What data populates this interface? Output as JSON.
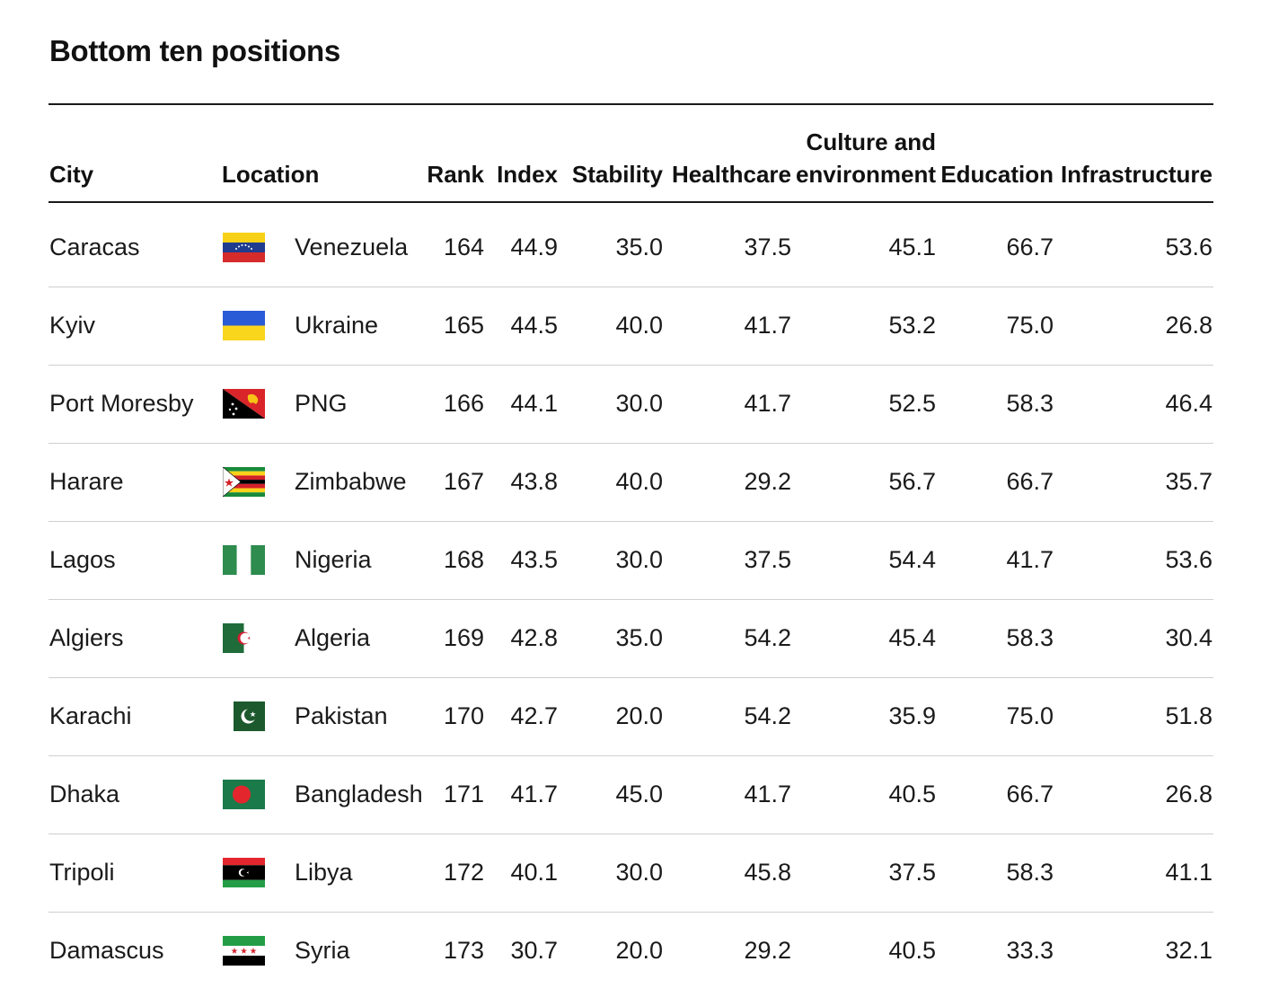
{
  "title": "Bottom ten positions",
  "headers": {
    "city": "City",
    "location": "Location",
    "rank": "Rank",
    "index": "Index",
    "stability": "Stability",
    "healthcare": "Healthcare",
    "culture_line1": "Culture and",
    "culture_line2": "environment",
    "education": "Education",
    "infrastructure": "Infrastructure"
  },
  "chart_data": {
    "type": "table",
    "columns": [
      "City",
      "Location",
      "Rank",
      "Index",
      "Stability",
      "Healthcare",
      "Culture and environment",
      "Education",
      "Infrastructure"
    ],
    "rows": [
      {
        "city": "Caracas",
        "location": "Venezuela",
        "flag": "venezuela-flag",
        "rank": "164",
        "index": "44.9",
        "stability": "35.0",
        "healthcare": "37.5",
        "culture": "45.1",
        "education": "66.7",
        "infrastructure": "53.6"
      },
      {
        "city": "Kyiv",
        "location": "Ukraine",
        "flag": "ukraine-flag",
        "rank": "165",
        "index": "44.5",
        "stability": "40.0",
        "healthcare": "41.7",
        "culture": "53.2",
        "education": "75.0",
        "infrastructure": "26.8"
      },
      {
        "city": "Port Moresby",
        "location": "PNG",
        "flag": "png-flag",
        "rank": "166",
        "index": "44.1",
        "stability": "30.0",
        "healthcare": "41.7",
        "culture": "52.5",
        "education": "58.3",
        "infrastructure": "46.4"
      },
      {
        "city": "Harare",
        "location": "Zimbabwe",
        "flag": "zimbabwe-flag",
        "rank": "167",
        "index": "43.8",
        "stability": "40.0",
        "healthcare": "29.2",
        "culture": "56.7",
        "education": "66.7",
        "infrastructure": "35.7"
      },
      {
        "city": "Lagos",
        "location": "Nigeria",
        "flag": "nigeria-flag",
        "rank": "168",
        "index": "43.5",
        "stability": "30.0",
        "healthcare": "37.5",
        "culture": "54.4",
        "education": "41.7",
        "infrastructure": "53.6"
      },
      {
        "city": "Algiers",
        "location": "Algeria",
        "flag": "algeria-flag",
        "rank": "169",
        "index": "42.8",
        "stability": "35.0",
        "healthcare": "54.2",
        "culture": "45.4",
        "education": "58.3",
        "infrastructure": "30.4"
      },
      {
        "city": "Karachi",
        "location": "Pakistan",
        "flag": "pakistan-flag",
        "rank": "170",
        "index": "42.7",
        "stability": "20.0",
        "healthcare": "54.2",
        "culture": "35.9",
        "education": "75.0",
        "infrastructure": "51.8"
      },
      {
        "city": "Dhaka",
        "location": "Bangladesh",
        "flag": "bangladesh-flag",
        "rank": "171",
        "index": "41.7",
        "stability": "45.0",
        "healthcare": "41.7",
        "culture": "40.5",
        "education": "66.7",
        "infrastructure": "26.8"
      },
      {
        "city": "Tripoli",
        "location": "Libya",
        "flag": "libya-flag",
        "rank": "172",
        "index": "40.1",
        "stability": "30.0",
        "healthcare": "45.8",
        "culture": "37.5",
        "education": "58.3",
        "infrastructure": "41.1"
      },
      {
        "city": "Damascus",
        "location": "Syria",
        "flag": "syria-flag",
        "rank": "173",
        "index": "30.7",
        "stability": "20.0",
        "healthcare": "29.2",
        "culture": "40.5",
        "education": "33.3",
        "infrastructure": "32.1"
      }
    ]
  }
}
